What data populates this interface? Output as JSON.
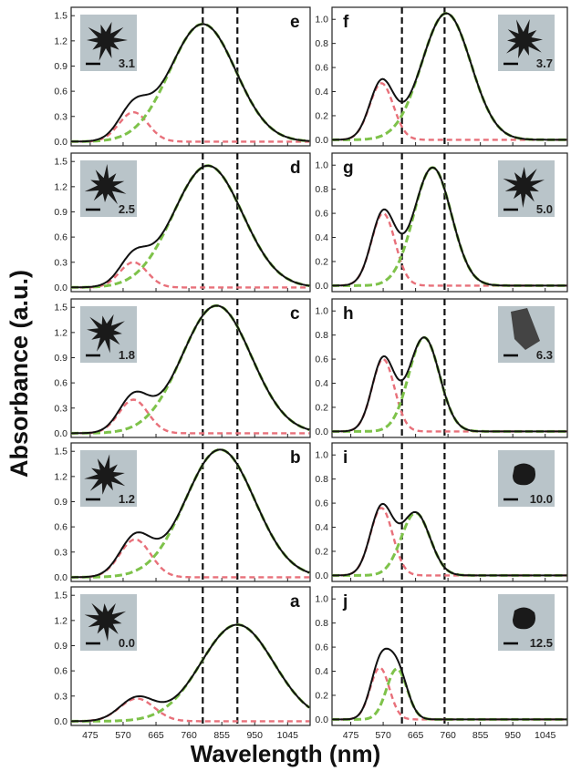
{
  "figure": {
    "ylabel": "Absorbance (a.u.)",
    "xlabel": "Wavelength (nm)"
  },
  "colors": {
    "total": "#111111",
    "peak1": "#e8707a",
    "peak2": "#7ec24a",
    "guides": "#111111",
    "inset_bg": "#b9c4c9",
    "particle": "#1a1a1a"
  },
  "chart_data": [
    {
      "panel": "e",
      "type": "line",
      "column": "left",
      "inset_label": "3.1",
      "particle": "star",
      "xlim": [
        420,
        1110
      ],
      "x_ticks": [
        475,
        570,
        665,
        760,
        855,
        950,
        1045
      ],
      "show_x_tick_labels": false,
      "ylim": [
        -0.05,
        1.6
      ],
      "y_ticks": [
        "0.0",
        "0.3",
        "0.6",
        "0.9",
        "1.2",
        "1.5"
      ],
      "y_tick_values": [
        0,
        0.3,
        0.6,
        0.9,
        1.2,
        1.5
      ],
      "guides": [
        800,
        900
      ],
      "series": [
        {
          "role": "peak1",
          "center": 600,
          "amp": 0.35,
          "sigma": 42
        },
        {
          "role": "peak2",
          "center": 800,
          "amp": 1.4,
          "sigma": 95
        }
      ]
    },
    {
      "panel": "d",
      "type": "line",
      "column": "left",
      "inset_label": "2.5",
      "particle": "star",
      "xlim": [
        420,
        1110
      ],
      "x_ticks": [
        475,
        570,
        665,
        760,
        855,
        950,
        1045
      ],
      "show_x_tick_labels": false,
      "ylim": [
        -0.05,
        1.6
      ],
      "y_ticks": [
        "0.0",
        "0.3",
        "0.6",
        "0.9",
        "1.2",
        "1.5"
      ],
      "y_tick_values": [
        0,
        0.3,
        0.6,
        0.9,
        1.2,
        1.5
      ],
      "guides": [
        800,
        900
      ],
      "series": [
        {
          "role": "peak1",
          "center": 600,
          "amp": 0.3,
          "sigma": 40
        },
        {
          "role": "peak2",
          "center": 815,
          "amp": 1.45,
          "sigma": 100
        }
      ]
    },
    {
      "panel": "c",
      "type": "line",
      "column": "left",
      "inset_label": "1.8",
      "particle": "star",
      "xlim": [
        420,
        1110
      ],
      "x_ticks": [
        475,
        570,
        665,
        760,
        855,
        950,
        1045
      ],
      "show_x_tick_labels": false,
      "ylim": [
        -0.05,
        1.6
      ],
      "y_ticks": [
        "0.0",
        "0.3",
        "0.6",
        "0.9",
        "1.2",
        "1.5"
      ],
      "y_tick_values": [
        0,
        0.3,
        0.6,
        0.9,
        1.2,
        1.5
      ],
      "guides": [
        800,
        900
      ],
      "series": [
        {
          "role": "peak1",
          "center": 600,
          "amp": 0.4,
          "sigma": 42
        },
        {
          "role": "peak2",
          "center": 840,
          "amp": 1.52,
          "sigma": 100
        }
      ]
    },
    {
      "panel": "b",
      "type": "line",
      "column": "left",
      "inset_label": "1.2",
      "particle": "star",
      "xlim": [
        420,
        1110
      ],
      "x_ticks": [
        475,
        570,
        665,
        760,
        855,
        950,
        1045
      ],
      "show_x_tick_labels": false,
      "ylim": [
        -0.05,
        1.6
      ],
      "y_ticks": [
        "0.0",
        "0.3",
        "0.6",
        "0.9",
        "1.2",
        "1.5"
      ],
      "y_tick_values": [
        0,
        0.3,
        0.6,
        0.9,
        1.2,
        1.5
      ],
      "guides": [
        800,
        900
      ],
      "series": [
        {
          "role": "peak1",
          "center": 605,
          "amp": 0.45,
          "sigma": 45
        },
        {
          "role": "peak2",
          "center": 850,
          "amp": 1.52,
          "sigma": 100
        }
      ]
    },
    {
      "panel": "a",
      "type": "line",
      "column": "left",
      "inset_label": "0.0",
      "particle": "star",
      "xlim": [
        420,
        1110
      ],
      "x_ticks": [
        475,
        570,
        665,
        760,
        855,
        950,
        1045
      ],
      "show_x_tick_labels": true,
      "ylim": [
        -0.05,
        1.6
      ],
      "y_ticks": [
        "0.0",
        "0.3",
        "0.6",
        "0.9",
        "1.2",
        "1.5"
      ],
      "y_tick_values": [
        0,
        0.3,
        0.6,
        0.9,
        1.2,
        1.5
      ],
      "guides": [
        800,
        900
      ],
      "series": [
        {
          "role": "peak1",
          "center": 610,
          "amp": 0.27,
          "sigma": 50
        },
        {
          "role": "peak2",
          "center": 900,
          "amp": 1.15,
          "sigma": 105
        }
      ]
    },
    {
      "panel": "f",
      "type": "line",
      "column": "right",
      "inset_label": "3.7",
      "particle": "star",
      "xlim": [
        420,
        1110
      ],
      "x_ticks": [
        475,
        570,
        665,
        760,
        855,
        950,
        1045
      ],
      "show_x_tick_labels": false,
      "ylim": [
        -0.05,
        1.1
      ],
      "y_ticks": [
        "0.0",
        "0.2",
        "0.4",
        "0.6",
        "0.8",
        "1.0"
      ],
      "y_tick_values": [
        0,
        0.2,
        0.4,
        0.6,
        0.8,
        1.0
      ],
      "guides": [
        625,
        750
      ],
      "series": [
        {
          "role": "peak1",
          "center": 565,
          "amp": 0.47,
          "sigma": 35
        },
        {
          "role": "peak2",
          "center": 755,
          "amp": 1.05,
          "sigma": 72
        }
      ]
    },
    {
      "panel": "g",
      "type": "line",
      "column": "right",
      "inset_label": "5.0",
      "particle": "star",
      "xlim": [
        420,
        1110
      ],
      "x_ticks": [
        475,
        570,
        665,
        760,
        855,
        950,
        1045
      ],
      "show_x_tick_labels": false,
      "ylim": [
        -0.05,
        1.1
      ],
      "y_ticks": [
        "0.0",
        "0.2",
        "0.4",
        "0.6",
        "0.8",
        "1.0"
      ],
      "y_tick_values": [
        0,
        0.2,
        0.4,
        0.6,
        0.8,
        1.0
      ],
      "guides": [
        625,
        750
      ],
      "series": [
        {
          "role": "peak1",
          "center": 570,
          "amp": 0.6,
          "sigma": 35
        },
        {
          "role": "peak2",
          "center": 715,
          "amp": 0.98,
          "sigma": 55
        }
      ]
    },
    {
      "panel": "h",
      "type": "line",
      "column": "right",
      "inset_label": "6.3",
      "particle": "rod",
      "xlim": [
        420,
        1110
      ],
      "x_ticks": [
        475,
        570,
        665,
        760,
        855,
        950,
        1045
      ],
      "show_x_tick_labels": false,
      "ylim": [
        -0.05,
        1.1
      ],
      "y_ticks": [
        "0.0",
        "0.2",
        "0.4",
        "0.6",
        "0.8",
        "1.0"
      ],
      "y_tick_values": [
        0,
        0.2,
        0.4,
        0.6,
        0.8,
        1.0
      ],
      "guides": [
        625,
        750
      ],
      "series": [
        {
          "role": "peak1",
          "center": 570,
          "amp": 0.6,
          "sigma": 33
        },
        {
          "role": "peak2",
          "center": 690,
          "amp": 0.78,
          "sigma": 45
        }
      ]
    },
    {
      "panel": "i",
      "type": "line",
      "column": "right",
      "inset_label": "10.0",
      "particle": "blob",
      "xlim": [
        420,
        1110
      ],
      "x_ticks": [
        475,
        570,
        665,
        760,
        855,
        950,
        1045
      ],
      "show_x_tick_labels": false,
      "ylim": [
        -0.05,
        1.1
      ],
      "y_ticks": [
        "0.0",
        "0.2",
        "0.4",
        "0.6",
        "0.8",
        "1.0"
      ],
      "y_tick_values": [
        0,
        0.2,
        0.4,
        0.6,
        0.8,
        1.0
      ],
      "guides": [
        625,
        750
      ],
      "series": [
        {
          "role": "peak1",
          "center": 565,
          "amp": 0.56,
          "sigma": 33
        },
        {
          "role": "peak2",
          "center": 665,
          "amp": 0.52,
          "sigma": 42
        }
      ]
    },
    {
      "panel": "j",
      "type": "line",
      "column": "right",
      "inset_label": "12.5",
      "particle": "blob",
      "xlim": [
        420,
        1110
      ],
      "x_ticks": [
        475,
        570,
        665,
        760,
        855,
        950,
        1045
      ],
      "show_x_tick_labels": true,
      "ylim": [
        -0.05,
        1.1
      ],
      "y_ticks": [
        "0.0",
        "0.2",
        "0.4",
        "0.6",
        "0.8",
        "1.0"
      ],
      "y_tick_values": [
        0,
        0.2,
        0.4,
        0.6,
        0.8,
        1.0
      ],
      "guides": [
        625,
        750
      ],
      "series": [
        {
          "role": "peak1",
          "center": 560,
          "amp": 0.43,
          "sigma": 28
        },
        {
          "role": "peak2",
          "center": 610,
          "amp": 0.42,
          "sigma": 30
        }
      ]
    }
  ]
}
